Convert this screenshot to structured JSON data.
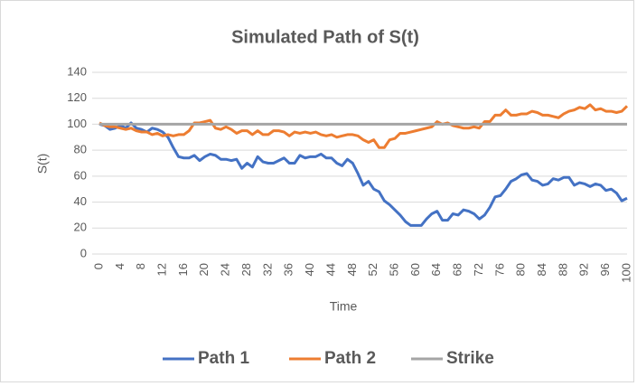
{
  "chart_data": {
    "type": "line",
    "title": "Simulated Path of S(t)",
    "x_label": "Time",
    "y_label": "S(t)",
    "x": [
      0,
      1,
      2,
      3,
      4,
      5,
      6,
      7,
      8,
      9,
      10,
      11,
      12,
      13,
      14,
      15,
      16,
      17,
      18,
      19,
      20,
      21,
      22,
      23,
      24,
      25,
      26,
      27,
      28,
      29,
      30,
      31,
      32,
      33,
      34,
      35,
      36,
      37,
      38,
      39,
      40,
      41,
      42,
      43,
      44,
      45,
      46,
      47,
      48,
      49,
      50,
      51,
      52,
      53,
      54,
      55,
      56,
      57,
      58,
      59,
      60,
      61,
      62,
      63,
      64,
      65,
      66,
      67,
      68,
      69,
      70,
      71,
      72,
      73,
      74,
      75,
      76,
      77,
      78,
      79,
      80,
      81,
      82,
      83,
      84,
      85,
      86,
      87,
      88,
      89,
      90,
      91,
      92,
      93,
      94,
      95,
      96,
      97,
      98,
      99,
      100
    ],
    "series": [
      {
        "name": "Path 1",
        "color": "#4472c4",
        "values": [
          100,
          99,
          96,
          97,
          99,
          97,
          101,
          97,
          96,
          94,
          97,
          96,
          94,
          90,
          82,
          75,
          74,
          74,
          76,
          72,
          75,
          77,
          76,
          73,
          73,
          72,
          73,
          66,
          70,
          67,
          75,
          71,
          70,
          70,
          72,
          74,
          70,
          70,
          76,
          74,
          75,
          75,
          77,
          74,
          74,
          70,
          68,
          73,
          70,
          62,
          53,
          56,
          50,
          48,
          41,
          38,
          34,
          30,
          25,
          22,
          22,
          22,
          27,
          31,
          33,
          26,
          26,
          31,
          30,
          34,
          33,
          31,
          27,
          30,
          36,
          44,
          45,
          50,
          56,
          58,
          61,
          62,
          57,
          56,
          53,
          54,
          58,
          57,
          59,
          59,
          53,
          55,
          54,
          52,
          54,
          53,
          49,
          50,
          47,
          41,
          43
        ]
      },
      {
        "name": "Path 2",
        "color": "#ed7d31",
        "values": [
          101,
          99,
          98,
          98,
          97,
          96,
          97,
          95,
          94,
          94,
          92,
          93,
          91,
          92,
          91,
          92,
          92,
          95,
          101,
          101,
          102,
          103,
          97,
          96,
          98,
          96,
          93,
          95,
          95,
          92,
          95,
          92,
          92,
          95,
          95,
          94,
          91,
          94,
          93,
          94,
          93,
          94,
          92,
          91,
          92,
          90,
          91,
          92,
          92,
          91,
          88,
          86,
          88,
          82,
          82,
          88,
          89,
          93,
          93,
          94,
          95,
          96,
          97,
          98,
          102,
          100,
          101,
          99,
          98,
          97,
          97,
          98,
          97,
          102,
          102,
          107,
          107,
          111,
          107,
          107,
          108,
          108,
          110,
          109,
          107,
          107,
          106,
          105,
          108,
          110,
          111,
          113,
          112,
          115,
          111,
          112,
          110,
          110,
          109,
          110,
          114
        ]
      },
      {
        "name": "Strike",
        "color": "#a5a5a5",
        "values": [
          100,
          100,
          100,
          100,
          100,
          100,
          100,
          100,
          100,
          100,
          100,
          100,
          100,
          100,
          100,
          100,
          100,
          100,
          100,
          100,
          100,
          100,
          100,
          100,
          100,
          100,
          100,
          100,
          100,
          100,
          100,
          100,
          100,
          100,
          100,
          100,
          100,
          100,
          100,
          100,
          100,
          100,
          100,
          100,
          100,
          100,
          100,
          100,
          100,
          100,
          100,
          100,
          100,
          100,
          100,
          100,
          100,
          100,
          100,
          100,
          100,
          100,
          100,
          100,
          100,
          100,
          100,
          100,
          100,
          100,
          100,
          100,
          100,
          100,
          100,
          100,
          100,
          100,
          100,
          100,
          100,
          100,
          100,
          100,
          100,
          100,
          100,
          100,
          100,
          100,
          100,
          100,
          100,
          100,
          100,
          100,
          100,
          100,
          100,
          100,
          100
        ]
      }
    ],
    "xlim": [
      0,
      100
    ],
    "xticks": [
      0,
      4,
      8,
      12,
      16,
      20,
      24,
      28,
      32,
      36,
      40,
      44,
      48,
      52,
      56,
      60,
      64,
      68,
      72,
      76,
      80,
      84,
      88,
      92,
      96,
      100
    ],
    "ylim": [
      0,
      140
    ],
    "yticks": [
      0,
      20,
      40,
      60,
      80,
      100,
      120,
      140
    ],
    "grid": true,
    "legend": "bottom"
  }
}
